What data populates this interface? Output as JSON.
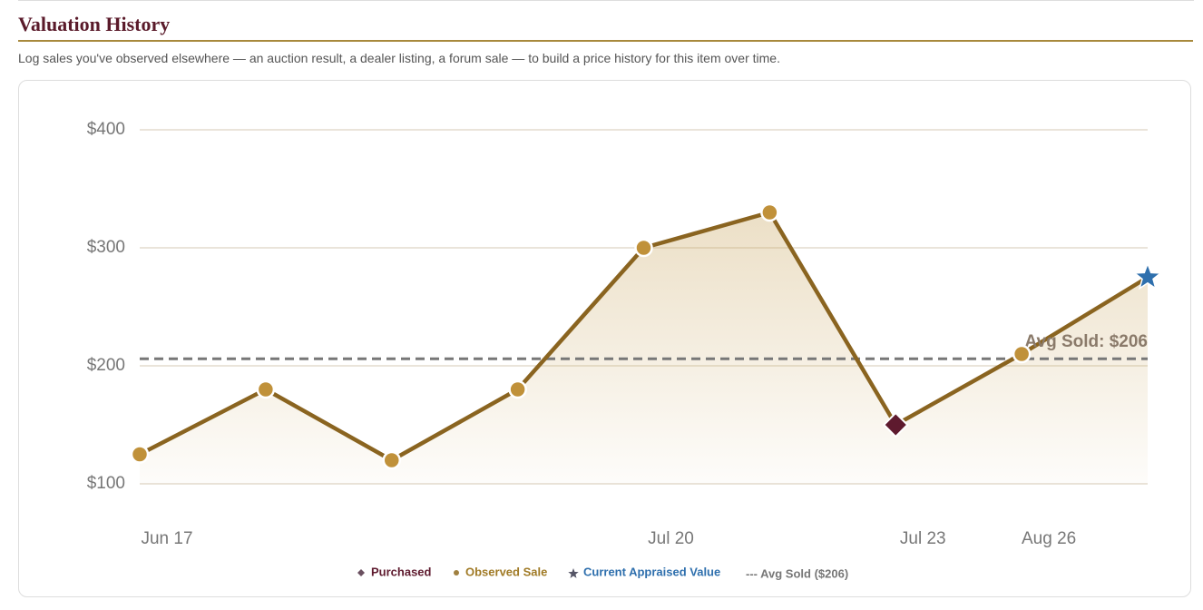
{
  "header": {
    "title": "Valuation History",
    "description": "Log sales you've observed elsewhere — an auction result, a dealer listing, a forum sale — to build a price history for this item over time."
  },
  "chart_data": {
    "type": "line",
    "categories": [
      "Jun 17",
      null,
      null,
      null,
      "Jul 20",
      null,
      "Jul 23",
      "Aug 26",
      null
    ],
    "series": [
      {
        "name": "Purchased",
        "color": "#5e1a2e",
        "marker": "diamond",
        "values": [
          null,
          null,
          null,
          null,
          null,
          null,
          150,
          null,
          null
        ]
      },
      {
        "name": "Observed Sale",
        "color": "#c0913a",
        "marker": "circle",
        "values": [
          125,
          180,
          120,
          180,
          300,
          330,
          null,
          210,
          null
        ]
      },
      {
        "name": "Current Appraised Value",
        "color": "#2e6fad",
        "marker": "star",
        "values": [
          null,
          null,
          null,
          null,
          null,
          null,
          null,
          null,
          275
        ]
      }
    ],
    "line_color": "#8a6420",
    "ylim": [
      100,
      400
    ],
    "yticks": [
      {
        "value": 100,
        "label": "$100"
      },
      {
        "value": 200,
        "label": "$200"
      },
      {
        "value": 300,
        "label": "$300"
      },
      {
        "value": 400,
        "label": "$400"
      }
    ],
    "grid": true,
    "reference_line": {
      "value": 206,
      "label": "Avg Sold: $206",
      "name": "--- Avg Sold ($206)",
      "color": "#777777"
    }
  }
}
